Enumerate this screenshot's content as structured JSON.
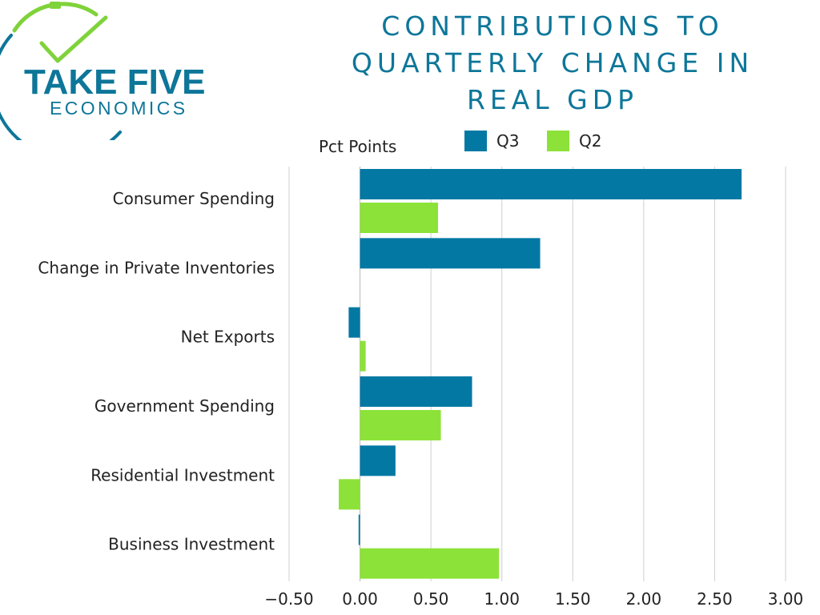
{
  "brand": {
    "name_line1": "TAKE FIVE",
    "name_line2": "ECONOMICS",
    "color_primary": "#0d7699",
    "color_accent": "#7fd33a"
  },
  "chart_data": {
    "type": "bar",
    "orientation": "horizontal",
    "title_lines": [
      "CONTRIBUTIONS TO",
      "QUARTERLY CHANGE IN",
      "REAL GDP"
    ],
    "unit_label": "Pct Points",
    "categories": [
      "Consumer Spending",
      "Change in Private Inventories",
      "Net Exports",
      "Government Spending",
      "Residential Investment",
      "Business Investment"
    ],
    "series": [
      {
        "name": "Q3",
        "color": "#0378a3",
        "values": [
          2.69,
          1.27,
          -0.08,
          0.79,
          0.25,
          -0.01
        ]
      },
      {
        "name": "Q2",
        "color": "#8de23a",
        "values": [
          0.55,
          0.0,
          0.04,
          0.57,
          -0.15,
          0.98
        ]
      }
    ],
    "xlim": [
      -0.5,
      3.0
    ],
    "xticks": [
      -0.5,
      0.0,
      0.5,
      1.0,
      1.5,
      2.0,
      2.5,
      3.0
    ],
    "xtick_labels": [
      "−0.50",
      "0.00",
      "0.50",
      "1.00",
      "1.50",
      "2.00",
      "2.50",
      "3.00"
    ],
    "grid": true,
    "legend_position": "top"
  }
}
